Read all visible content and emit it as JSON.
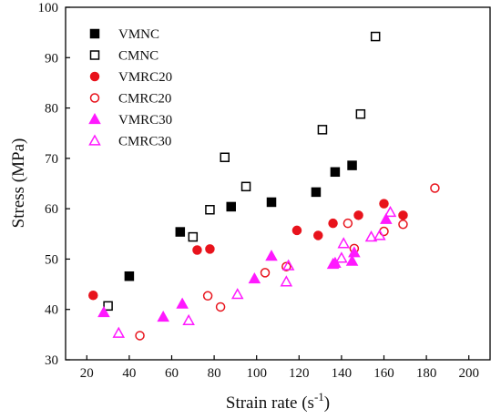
{
  "chart_data": {
    "type": "scatter",
    "xlabel": "Strain rate (s",
    "xlabel_sup": "-1",
    "xlabel_tail": ")",
    "ylabel": "Stress (MPa)",
    "xlim": [
      10,
      210
    ],
    "ylim": [
      30,
      100
    ],
    "xticks": [
      20,
      40,
      60,
      80,
      100,
      120,
      140,
      160,
      180,
      200
    ],
    "yticks": [
      30,
      40,
      50,
      60,
      70,
      80,
      90,
      100
    ],
    "grid": false,
    "legend_position": "top-left",
    "series": [
      {
        "name": "VMNC",
        "marker": "square",
        "filled": true,
        "color": "#000000",
        "points": [
          [
            40,
            46.6
          ],
          [
            64,
            55.4
          ],
          [
            88,
            60.4
          ],
          [
            107,
            61.3
          ],
          [
            128,
            63.3
          ],
          [
            137,
            67.3
          ],
          [
            145,
            68.6
          ]
        ]
      },
      {
        "name": "CMNC",
        "marker": "square",
        "filled": false,
        "color": "#000000",
        "points": [
          [
            30,
            40.7
          ],
          [
            70,
            54.4
          ],
          [
            78,
            59.8
          ],
          [
            85,
            70.2
          ],
          [
            95,
            64.4
          ],
          [
            131,
            75.7
          ],
          [
            149,
            78.8
          ],
          [
            156,
            94.2
          ]
        ]
      },
      {
        "name": "VMRC20",
        "marker": "circle",
        "filled": true,
        "color": "#e8131c",
        "points": [
          [
            23,
            42.8
          ],
          [
            72,
            51.8
          ],
          [
            78,
            52.0
          ],
          [
            119,
            55.7
          ],
          [
            129,
            54.7
          ],
          [
            136,
            57.1
          ],
          [
            148,
            58.7
          ],
          [
            160,
            61.0
          ],
          [
            169,
            58.7
          ]
        ]
      },
      {
        "name": "CMRC20",
        "marker": "circle",
        "filled": false,
        "color": "#e8131c",
        "points": [
          [
            45,
            34.8
          ],
          [
            77,
            42.7
          ],
          [
            83,
            40.5
          ],
          [
            104,
            47.3
          ],
          [
            114,
            48.5
          ],
          [
            143,
            57.1
          ],
          [
            146,
            52.1
          ],
          [
            160,
            55.5
          ],
          [
            169,
            56.9
          ],
          [
            184,
            64.1
          ]
        ]
      },
      {
        "name": "VMRC30",
        "marker": "triangle",
        "filled": true,
        "color": "#ff19ff",
        "points": [
          [
            28,
            39.4
          ],
          [
            56,
            38.5
          ],
          [
            65,
            41.1
          ],
          [
            99,
            46.1
          ],
          [
            107,
            50.6
          ],
          [
            136,
            49.0
          ],
          [
            137,
            49.2
          ],
          [
            145,
            49.6
          ],
          [
            146,
            51.3
          ],
          [
            161,
            57.9
          ]
        ]
      },
      {
        "name": "CMRC30",
        "marker": "triangle",
        "filled": false,
        "color": "#ff19ff",
        "points": [
          [
            35,
            35.3
          ],
          [
            68,
            37.8
          ],
          [
            91,
            43.0
          ],
          [
            114,
            45.5
          ],
          [
            115,
            48.7
          ],
          [
            140,
            50.2
          ],
          [
            141,
            53.1
          ],
          [
            154,
            54.4
          ],
          [
            158,
            54.7
          ],
          [
            163,
            59.3
          ]
        ]
      }
    ]
  }
}
